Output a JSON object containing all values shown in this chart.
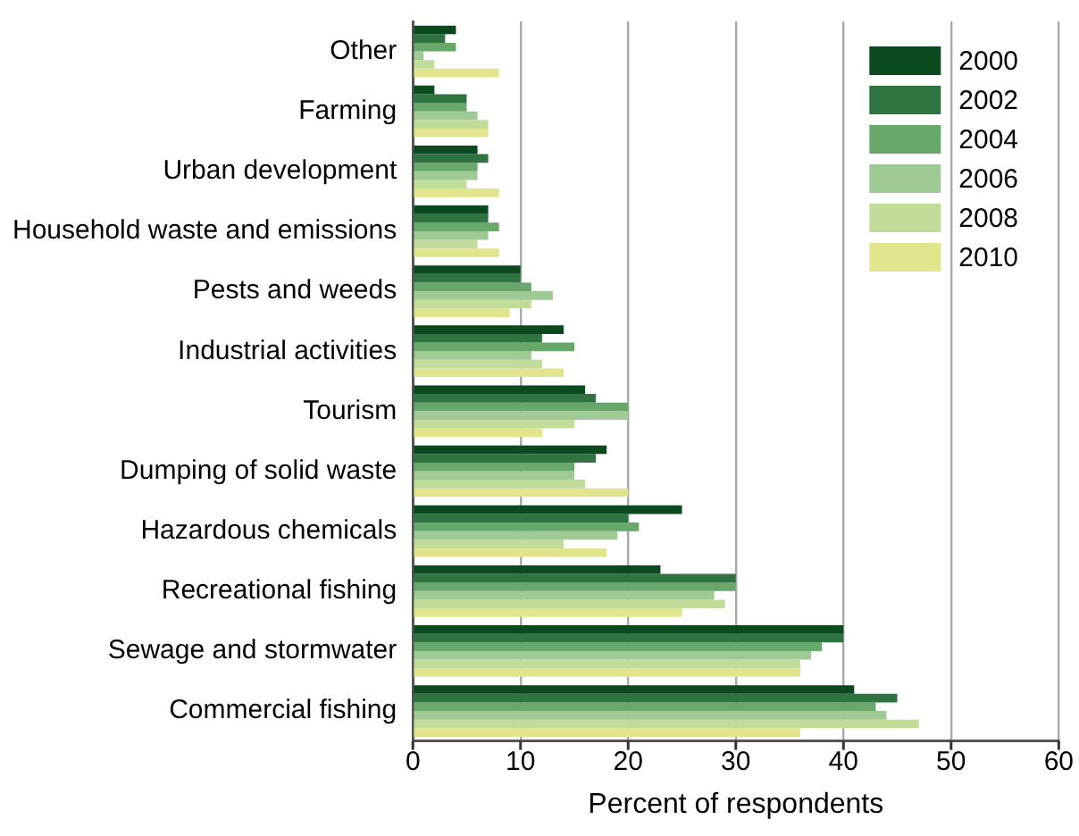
{
  "chart_data": {
    "type": "bar",
    "orientation": "horizontal",
    "xlabel": "Percent of respondents",
    "categories": [
      "Other",
      "Farming",
      "Urban development",
      "Household waste and emissions",
      "Pests and weeds",
      "Industrial activities",
      "Tourism",
      "Dumping of solid waste",
      "Hazardous chemicals",
      "Recreational fishing",
      "Sewage and stormwater",
      "Commercial fishing"
    ],
    "series": [
      {
        "name": "2000",
        "color": "#0b4a1f",
        "values": [
          4,
          2,
          6,
          7,
          10,
          14,
          16,
          18,
          25,
          23,
          40,
          41
        ]
      },
      {
        "name": "2002",
        "color": "#2f7440",
        "values": [
          3,
          5,
          7,
          7,
          10,
          12,
          17,
          17,
          20,
          30,
          40,
          45
        ]
      },
      {
        "name": "2004",
        "color": "#68a86a",
        "values": [
          4,
          5,
          6,
          8,
          11,
          15,
          20,
          15,
          21,
          30,
          38,
          43
        ]
      },
      {
        "name": "2006",
        "color": "#9fc995",
        "values": [
          1,
          6,
          6,
          7,
          13,
          11,
          20,
          15,
          19,
          28,
          37,
          44
        ]
      },
      {
        "name": "2008",
        "color": "#c2dd9a",
        "values": [
          2,
          7,
          5,
          6,
          11,
          12,
          15,
          16,
          14,
          29,
          36,
          47
        ]
      },
      {
        "name": "2010",
        "color": "#e0e58e",
        "values": [
          8,
          7,
          8,
          8,
          9,
          14,
          12,
          20,
          18,
          25,
          36,
          36
        ]
      }
    ],
    "xlim": [
      0,
      60
    ],
    "xticks": [
      0,
      10,
      20,
      30,
      40,
      50,
      60
    ],
    "grid": "x",
    "legend": "top right"
  }
}
